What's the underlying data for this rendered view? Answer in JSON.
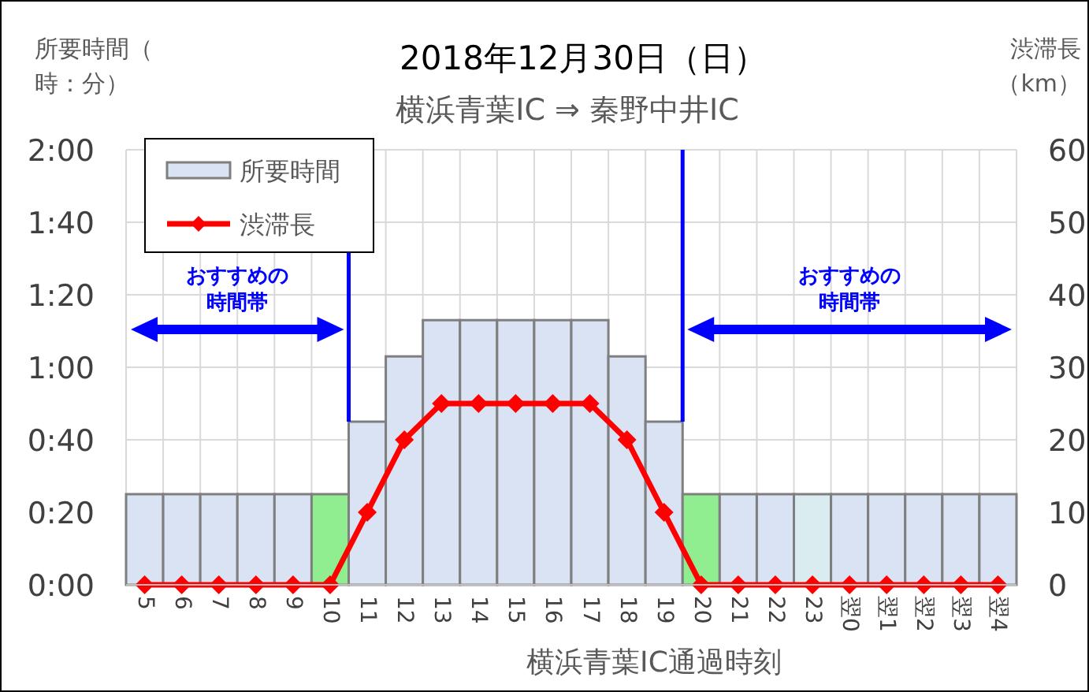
{
  "chart_data": {
    "type": "bar",
    "title": "2018年12月30日（日）",
    "subtitle": "横浜青葉IC ⇒ 秦野中井IC",
    "xlabel": "横浜青葉IC通過時刻",
    "ylabel": "所要時間（時：分）",
    "y2label": "渋滞長（km）",
    "categories": [
      "5",
      "6",
      "7",
      "8",
      "9",
      "10",
      "11",
      "12",
      "13",
      "14",
      "15",
      "16",
      "17",
      "18",
      "19",
      "20",
      "21",
      "22",
      "23",
      "翌0",
      "翌1",
      "翌2",
      "翌3",
      "翌4"
    ],
    "series": [
      {
        "name": "所要時間",
        "color": "#dae3f3",
        "colors": [
          "#dae3f3",
          "#dae3f3",
          "#dae3f3",
          "#dae3f3",
          "#dae3f3",
          "#90ee90",
          "#dae3f3",
          "#dae3f3",
          "#dae3f3",
          "#dae3f3",
          "#dae3f3",
          "#dae3f3",
          "#dae3f3",
          "#dae3f3",
          "#dae3f3",
          "#90ee90",
          "#dae3f3",
          "#dae3f3",
          "#daecef",
          "#dae3f3",
          "#dae3f3",
          "#dae3f3",
          "#dae3f3",
          "#dae3f3"
        ],
        "values": [
          25,
          25,
          25,
          25,
          25,
          25,
          45,
          63,
          73,
          73,
          73,
          73,
          73,
          63,
          45,
          25,
          25,
          25,
          25,
          25,
          25,
          25,
          25,
          25
        ]
      },
      {
        "name": "渋滞長",
        "type": "line",
        "axis": "y2",
        "color": "#ff0000",
        "marker": "diamond",
        "values": [
          0,
          0,
          0,
          0,
          0,
          0,
          10,
          20,
          25,
          25,
          25,
          25,
          25,
          20,
          10,
          0,
          0,
          0,
          0,
          0,
          0,
          0,
          0,
          0
        ]
      }
    ],
    "ylim": [
      0,
      120
    ],
    "yticks": [
      {
        "value": 0,
        "label": "0:00"
      },
      {
        "value": 20,
        "label": "0:20"
      },
      {
        "value": 40,
        "label": "0:40"
      },
      {
        "value": 60,
        "label": "1:00"
      },
      {
        "value": 80,
        "label": "1:20"
      },
      {
        "value": 100,
        "label": "1:40"
      },
      {
        "value": 120,
        "label": "2:00"
      }
    ],
    "y2lim": [
      0,
      60
    ],
    "y2ticks": [
      0,
      10,
      20,
      30,
      40,
      50,
      60
    ],
    "annotations": [
      "おすすめの時間帯",
      "おすすめの時間帯"
    ],
    "grid": true,
    "legend": "top left"
  }
}
